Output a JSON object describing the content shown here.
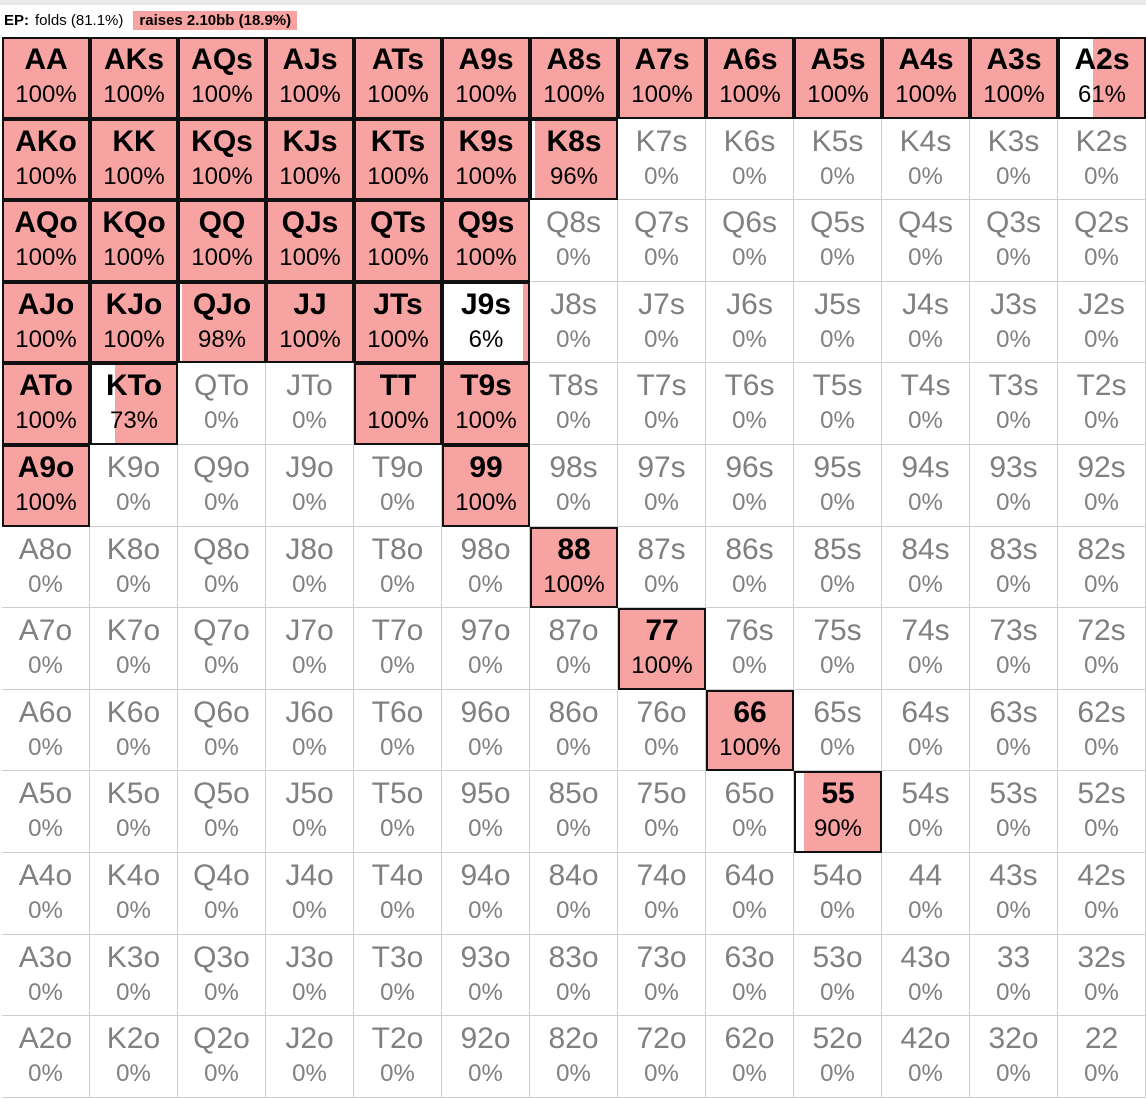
{
  "header": {
    "position_label": "EP:",
    "fold_label": "folds (81.1%)",
    "raise_label": "raises 2.10bb (18.9%)"
  },
  "colors": {
    "raise": "#f6a3a1",
    "fold": "#ffffff",
    "active_border": "#111111",
    "inactive_text": "#808080"
  },
  "grid": {
    "rows": [
      [
        [
          "AA",
          100
        ],
        [
          "AKs",
          100
        ],
        [
          "AQs",
          100
        ],
        [
          "AJs",
          100
        ],
        [
          "ATs",
          100
        ],
        [
          "A9s",
          100
        ],
        [
          "A8s",
          100
        ],
        [
          "A7s",
          100
        ],
        [
          "A6s",
          100
        ],
        [
          "A5s",
          100
        ],
        [
          "A4s",
          100
        ],
        [
          "A3s",
          100
        ],
        [
          "A2s",
          61
        ]
      ],
      [
        [
          "AKo",
          100
        ],
        [
          "KK",
          100
        ],
        [
          "KQs",
          100
        ],
        [
          "KJs",
          100
        ],
        [
          "KTs",
          100
        ],
        [
          "K9s",
          100
        ],
        [
          "K8s",
          96
        ],
        [
          "K7s",
          0
        ],
        [
          "K6s",
          0
        ],
        [
          "K5s",
          0
        ],
        [
          "K4s",
          0
        ],
        [
          "K3s",
          0
        ],
        [
          "K2s",
          0
        ]
      ],
      [
        [
          "AQo",
          100
        ],
        [
          "KQo",
          100
        ],
        [
          "QQ",
          100
        ],
        [
          "QJs",
          100
        ],
        [
          "QTs",
          100
        ],
        [
          "Q9s",
          100
        ],
        [
          "Q8s",
          0
        ],
        [
          "Q7s",
          0
        ],
        [
          "Q6s",
          0
        ],
        [
          "Q5s",
          0
        ],
        [
          "Q4s",
          0
        ],
        [
          "Q3s",
          0
        ],
        [
          "Q2s",
          0
        ]
      ],
      [
        [
          "AJo",
          100
        ],
        [
          "KJo",
          100
        ],
        [
          "QJo",
          98
        ],
        [
          "JJ",
          100
        ],
        [
          "JTs",
          100
        ],
        [
          "J9s",
          6
        ],
        [
          "J8s",
          0
        ],
        [
          "J7s",
          0
        ],
        [
          "J6s",
          0
        ],
        [
          "J5s",
          0
        ],
        [
          "J4s",
          0
        ],
        [
          "J3s",
          0
        ],
        [
          "J2s",
          0
        ]
      ],
      [
        [
          "ATo",
          100
        ],
        [
          "KTo",
          73
        ],
        [
          "QTo",
          0
        ],
        [
          "JTo",
          0
        ],
        [
          "TT",
          100
        ],
        [
          "T9s",
          100
        ],
        [
          "T8s",
          0
        ],
        [
          "T7s",
          0
        ],
        [
          "T6s",
          0
        ],
        [
          "T5s",
          0
        ],
        [
          "T4s",
          0
        ],
        [
          "T3s",
          0
        ],
        [
          "T2s",
          0
        ]
      ],
      [
        [
          "A9o",
          100
        ],
        [
          "K9o",
          0
        ],
        [
          "Q9o",
          0
        ],
        [
          "J9o",
          0
        ],
        [
          "T9o",
          0
        ],
        [
          "99",
          100
        ],
        [
          "98s",
          0
        ],
        [
          "97s",
          0
        ],
        [
          "96s",
          0
        ],
        [
          "95s",
          0
        ],
        [
          "94s",
          0
        ],
        [
          "93s",
          0
        ],
        [
          "92s",
          0
        ]
      ],
      [
        [
          "A8o",
          0
        ],
        [
          "K8o",
          0
        ],
        [
          "Q8o",
          0
        ],
        [
          "J8o",
          0
        ],
        [
          "T8o",
          0
        ],
        [
          "98o",
          0
        ],
        [
          "88",
          100
        ],
        [
          "87s",
          0
        ],
        [
          "86s",
          0
        ],
        [
          "85s",
          0
        ],
        [
          "84s",
          0
        ],
        [
          "83s",
          0
        ],
        [
          "82s",
          0
        ]
      ],
      [
        [
          "A7o",
          0
        ],
        [
          "K7o",
          0
        ],
        [
          "Q7o",
          0
        ],
        [
          "J7o",
          0
        ],
        [
          "T7o",
          0
        ],
        [
          "97o",
          0
        ],
        [
          "87o",
          0
        ],
        [
          "77",
          100
        ],
        [
          "76s",
          0
        ],
        [
          "75s",
          0
        ],
        [
          "74s",
          0
        ],
        [
          "73s",
          0
        ],
        [
          "72s",
          0
        ]
      ],
      [
        [
          "A6o",
          0
        ],
        [
          "K6o",
          0
        ],
        [
          "Q6o",
          0
        ],
        [
          "J6o",
          0
        ],
        [
          "T6o",
          0
        ],
        [
          "96o",
          0
        ],
        [
          "86o",
          0
        ],
        [
          "76o",
          0
        ],
        [
          "66",
          100
        ],
        [
          "65s",
          0
        ],
        [
          "64s",
          0
        ],
        [
          "63s",
          0
        ],
        [
          "62s",
          0
        ]
      ],
      [
        [
          "A5o",
          0
        ],
        [
          "K5o",
          0
        ],
        [
          "Q5o",
          0
        ],
        [
          "J5o",
          0
        ],
        [
          "T5o",
          0
        ],
        [
          "95o",
          0
        ],
        [
          "85o",
          0
        ],
        [
          "75o",
          0
        ],
        [
          "65o",
          0
        ],
        [
          "55",
          90
        ],
        [
          "54s",
          0
        ],
        [
          "53s",
          0
        ],
        [
          "52s",
          0
        ]
      ],
      [
        [
          "A4o",
          0
        ],
        [
          "K4o",
          0
        ],
        [
          "Q4o",
          0
        ],
        [
          "J4o",
          0
        ],
        [
          "T4o",
          0
        ],
        [
          "94o",
          0
        ],
        [
          "84o",
          0
        ],
        [
          "74o",
          0
        ],
        [
          "64o",
          0
        ],
        [
          "54o",
          0
        ],
        [
          "44",
          0
        ],
        [
          "43s",
          0
        ],
        [
          "42s",
          0
        ]
      ],
      [
        [
          "A3o",
          0
        ],
        [
          "K3o",
          0
        ],
        [
          "Q3o",
          0
        ],
        [
          "J3o",
          0
        ],
        [
          "T3o",
          0
        ],
        [
          "93o",
          0
        ],
        [
          "83o",
          0
        ],
        [
          "73o",
          0
        ],
        [
          "63o",
          0
        ],
        [
          "53o",
          0
        ],
        [
          "43o",
          0
        ],
        [
          "33",
          0
        ],
        [
          "32s",
          0
        ]
      ],
      [
        [
          "A2o",
          0
        ],
        [
          "K2o",
          0
        ],
        [
          "Q2o",
          0
        ],
        [
          "J2o",
          0
        ],
        [
          "T2o",
          0
        ],
        [
          "92o",
          0
        ],
        [
          "82o",
          0
        ],
        [
          "72o",
          0
        ],
        [
          "62o",
          0
        ],
        [
          "52o",
          0
        ],
        [
          "42o",
          0
        ],
        [
          "32o",
          0
        ],
        [
          "22",
          0
        ]
      ]
    ]
  }
}
